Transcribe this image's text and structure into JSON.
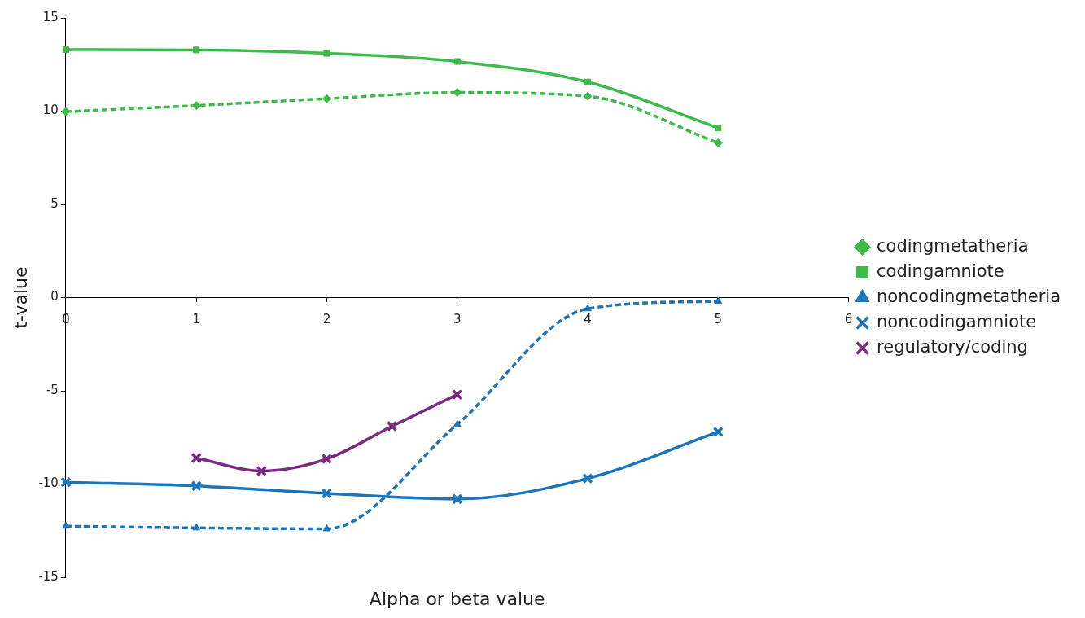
{
  "chart_data": {
    "type": "line",
    "xlabel": "Alpha or beta value",
    "ylabel": "t-value",
    "x": [
      0,
      1,
      2,
      3,
      4,
      5
    ],
    "xlim": [
      0,
      6
    ],
    "xticks": [
      0,
      1,
      2,
      3,
      4,
      5,
      6
    ],
    "ylim": [
      -15,
      15
    ],
    "yticks": [
      -15,
      -10,
      -5,
      0,
      5,
      10,
      15
    ],
    "grid": false,
    "legend": "right",
    "series": [
      {
        "name": "codingmetatheria",
        "color": "#3dba4a",
        "marker": "diamond",
        "line_style": "dashed",
        "values": [
          9.97,
          10.3,
          10.67,
          11.0,
          10.8,
          8.3
        ]
      },
      {
        "name": "codingamniote",
        "color": "#3dba4a",
        "marker": "square",
        "line_style": "solid",
        "values": [
          13.3,
          13.28,
          13.1,
          12.66,
          11.56,
          9.1
        ]
      },
      {
        "name": "noncodingmetatheria",
        "color": "#1a75bc",
        "marker": "triangle",
        "line_style": "dashed",
        "values": [
          -12.26,
          -12.35,
          -12.4,
          -6.8,
          -0.6,
          -0.2
        ]
      },
      {
        "name": "noncodingamniote",
        "color": "#1a75bc",
        "marker": "cross",
        "line_style": "solid",
        "values": [
          -9.9,
          -10.1,
          -10.5,
          -10.8,
          -9.7,
          -7.2
        ]
      },
      {
        "name": "regulatory/coding",
        "color": "#7b2a84",
        "marker": "cross",
        "line_style": "solid",
        "x": [
          1,
          1.5,
          2,
          2.5,
          3
        ],
        "values": [
          -8.6,
          -9.3,
          -8.65,
          -6.9,
          -5.2
        ]
      }
    ]
  }
}
